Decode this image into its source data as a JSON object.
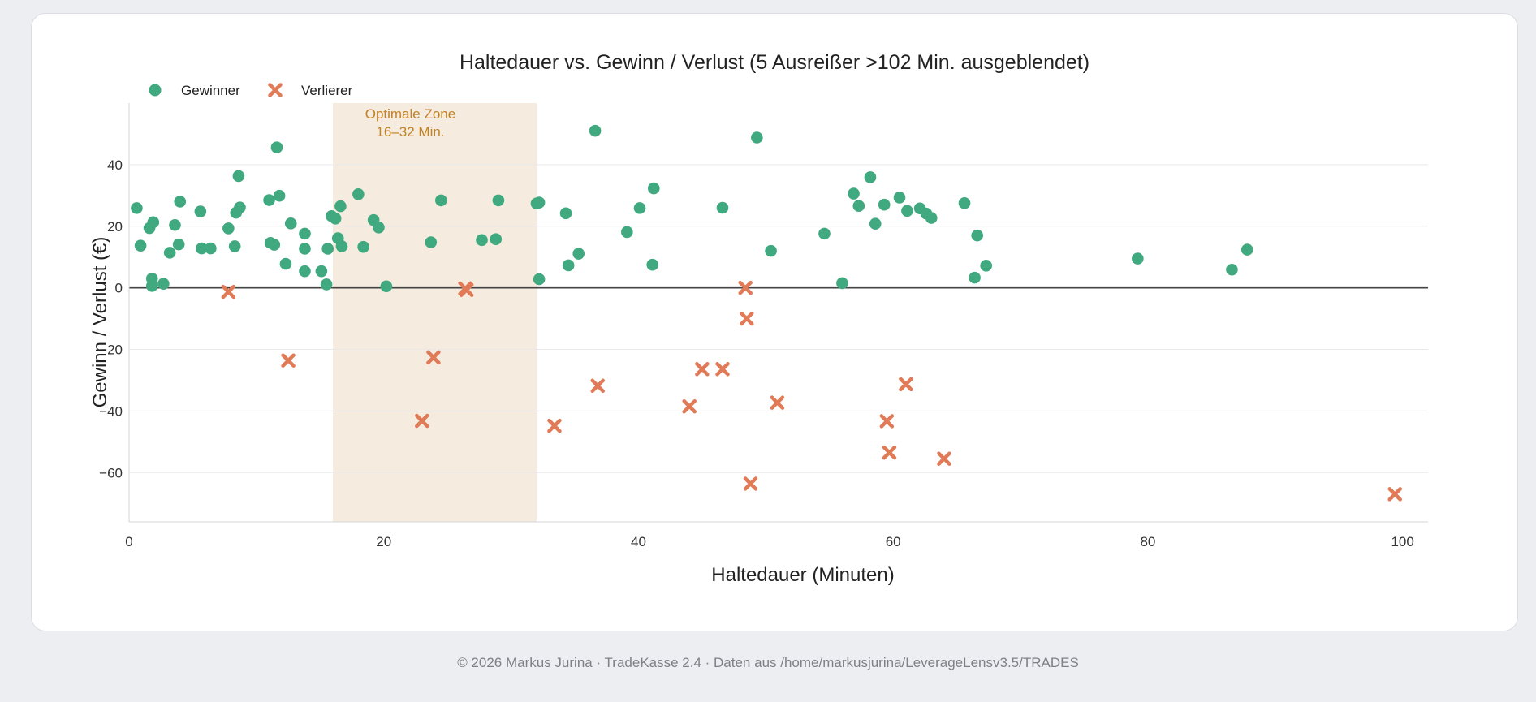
{
  "chart_data": {
    "type": "scatter",
    "title": "Haltedauer vs. Gewinn / Verlust (5 Ausreißer >102 Min. ausgeblendet)",
    "xlabel": "Haltedauer (Minuten)",
    "ylabel": "Gewinn / Verlust (€)",
    "xlim": [
      0,
      102
    ],
    "ylim": [
      -76,
      60
    ],
    "x_ticks": [
      0,
      20,
      40,
      60,
      80,
      100
    ],
    "y_ticks": [
      -60,
      -40,
      -20,
      0,
      20,
      40
    ],
    "grid": "horizontal",
    "legend_position": "top-left",
    "zone": {
      "x": [
        16,
        32
      ],
      "label_line1": "Optimale Zone",
      "label_line2": "16–32 Min.",
      "color": "#f5ebde",
      "text_color": "#c08222"
    },
    "series": [
      {
        "name": "Gewinner",
        "marker": "circle",
        "color": "#41a97f",
        "points": [
          [
            0.6,
            25.9
          ],
          [
            0.9,
            13.7
          ],
          [
            1.6,
            19.4
          ],
          [
            1.9,
            21.3
          ],
          [
            1.8,
            0.6
          ],
          [
            1.8,
            3.0
          ],
          [
            2.7,
            1.3
          ],
          [
            3.2,
            11.4
          ],
          [
            3.6,
            20.4
          ],
          [
            3.9,
            14.1
          ],
          [
            4.0,
            28.0
          ],
          [
            5.6,
            24.8
          ],
          [
            5.7,
            12.8
          ],
          [
            6.4,
            12.8
          ],
          [
            7.8,
            19.3
          ],
          [
            8.3,
            13.5
          ],
          [
            8.4,
            24.4
          ],
          [
            8.6,
            36.3
          ],
          [
            8.7,
            26.1
          ],
          [
            11.0,
            28.5
          ],
          [
            11.1,
            14.6
          ],
          [
            11.4,
            14.0
          ],
          [
            11.6,
            45.6
          ],
          [
            11.8,
            29.9
          ],
          [
            12.3,
            7.8
          ],
          [
            12.7,
            20.9
          ],
          [
            13.8,
            17.6
          ],
          [
            13.8,
            12.7
          ],
          [
            13.8,
            5.4
          ],
          [
            15.1,
            5.4
          ],
          [
            15.5,
            1.1
          ],
          [
            15.6,
            12.7
          ],
          [
            15.9,
            23.3
          ],
          [
            16.2,
            22.5
          ],
          [
            16.4,
            16.1
          ],
          [
            16.6,
            26.5
          ],
          [
            16.7,
            13.5
          ],
          [
            18.0,
            30.4
          ],
          [
            18.4,
            13.3
          ],
          [
            19.2,
            22.0
          ],
          [
            19.6,
            19.6
          ],
          [
            20.2,
            0.5
          ],
          [
            23.7,
            14.8
          ],
          [
            24.5,
            28.4
          ],
          [
            27.7,
            15.5
          ],
          [
            28.8,
            15.8
          ],
          [
            29.0,
            28.4
          ],
          [
            32.0,
            27.4
          ],
          [
            32.2,
            27.7
          ],
          [
            32.2,
            2.8
          ],
          [
            34.3,
            24.2
          ],
          [
            34.5,
            7.3
          ],
          [
            35.3,
            11.1
          ],
          [
            36.6,
            51.0
          ],
          [
            39.1,
            18.1
          ],
          [
            40.1,
            25.9
          ],
          [
            41.1,
            7.5
          ],
          [
            41.2,
            32.3
          ],
          [
            46.6,
            26.0
          ],
          [
            49.3,
            48.8
          ],
          [
            50.4,
            12.0
          ],
          [
            54.6,
            17.6
          ],
          [
            56.0,
            1.5
          ],
          [
            56.9,
            30.6
          ],
          [
            57.3,
            26.6
          ],
          [
            58.2,
            35.9
          ],
          [
            58.6,
            20.8
          ],
          [
            59.3,
            27.0
          ],
          [
            60.5,
            29.3
          ],
          [
            61.1,
            25.0
          ],
          [
            62.1,
            25.8
          ],
          [
            62.6,
            24.1
          ],
          [
            63.0,
            22.7
          ],
          [
            65.6,
            27.5
          ],
          [
            66.4,
            3.3
          ],
          [
            66.6,
            17.0
          ],
          [
            67.3,
            7.2
          ],
          [
            79.2,
            9.5
          ],
          [
            86.6,
            5.9
          ],
          [
            87.8,
            12.4
          ]
        ]
      },
      {
        "name": "Verlierer",
        "marker": "cross",
        "color": "#e07a57",
        "points": [
          [
            7.8,
            -1.3
          ],
          [
            12.5,
            -23.6
          ],
          [
            23.0,
            -43.2
          ],
          [
            23.9,
            -22.6
          ],
          [
            26.4,
            -0.2
          ],
          [
            26.5,
            -0.7
          ],
          [
            33.4,
            -44.8
          ],
          [
            36.8,
            -31.8
          ],
          [
            44.0,
            -38.5
          ],
          [
            45.0,
            -26.4
          ],
          [
            46.6,
            -26.4
          ],
          [
            48.4,
            0.0
          ],
          [
            48.5,
            -10.0
          ],
          [
            48.8,
            -63.6
          ],
          [
            50.9,
            -37.3
          ],
          [
            59.5,
            -43.3
          ],
          [
            59.7,
            -53.5
          ],
          [
            61.0,
            -31.3
          ],
          [
            64.0,
            -55.5
          ],
          [
            99.4,
            -67.0
          ]
        ]
      }
    ]
  },
  "footer": "© 2026 Markus Jurina · TradeKasse 2.4 · Daten aus /home/markusjurina/LeverageLensv3.5/TRADES"
}
